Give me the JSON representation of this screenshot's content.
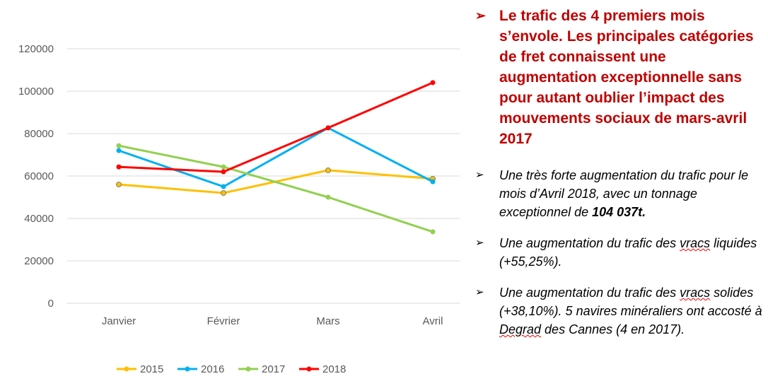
{
  "chart_data": {
    "type": "line",
    "categories": [
      "Janvier",
      "Février",
      "Mars",
      "Avril"
    ],
    "ylim": [
      0,
      120000
    ],
    "yticks": [
      "0",
      "20000",
      "40000",
      "60000",
      "80000",
      "100000",
      "120000"
    ],
    "grid": true,
    "legend_position": "bottom",
    "series": [
      {
        "name": "2015",
        "color": "#ffc000",
        "values": [
          56000,
          52000,
          62700,
          58700
        ]
      },
      {
        "name": "2016",
        "color": "#00b0f0",
        "values": [
          72000,
          55000,
          82700,
          57300
        ]
      },
      {
        "name": "2017",
        "color": "#92d050",
        "values": [
          74300,
          64300,
          50000,
          33700
        ]
      },
      {
        "name": "2018",
        "color": "#ff0000",
        "values": [
          64300,
          62000,
          82700,
          104037
        ]
      }
    ]
  },
  "panel": {
    "headline": "Le trafic des 4 premiers mois s’envole. Les principales catégories de fret connaissent une augmentation exceptionnelle sans pour autant oublier l’impact des mouvements sociaux de mars-avril 2017",
    "bullet1_text": "Une très forte augmentation du trafic pour le mois d’Avril 2018, avec un tonnage exceptionnel de ",
    "bullet1_bold": "104 037t.",
    "bullet2_a": "Une augmentation du trafic des ",
    "bullet2_b": "vracs",
    "bullet2_c": " liquides (+55,25%).",
    "bullet3_a": " Une augmentation du trafic des ",
    "bullet3_b": "vracs",
    "bullet3_c": " solides (+38,10%). 5 navires minéraliers ont accosté à ",
    "bullet3_d": "Degrad",
    "bullet3_e": " des Cannes (4 en 2017).",
    "arrow": "➢"
  }
}
